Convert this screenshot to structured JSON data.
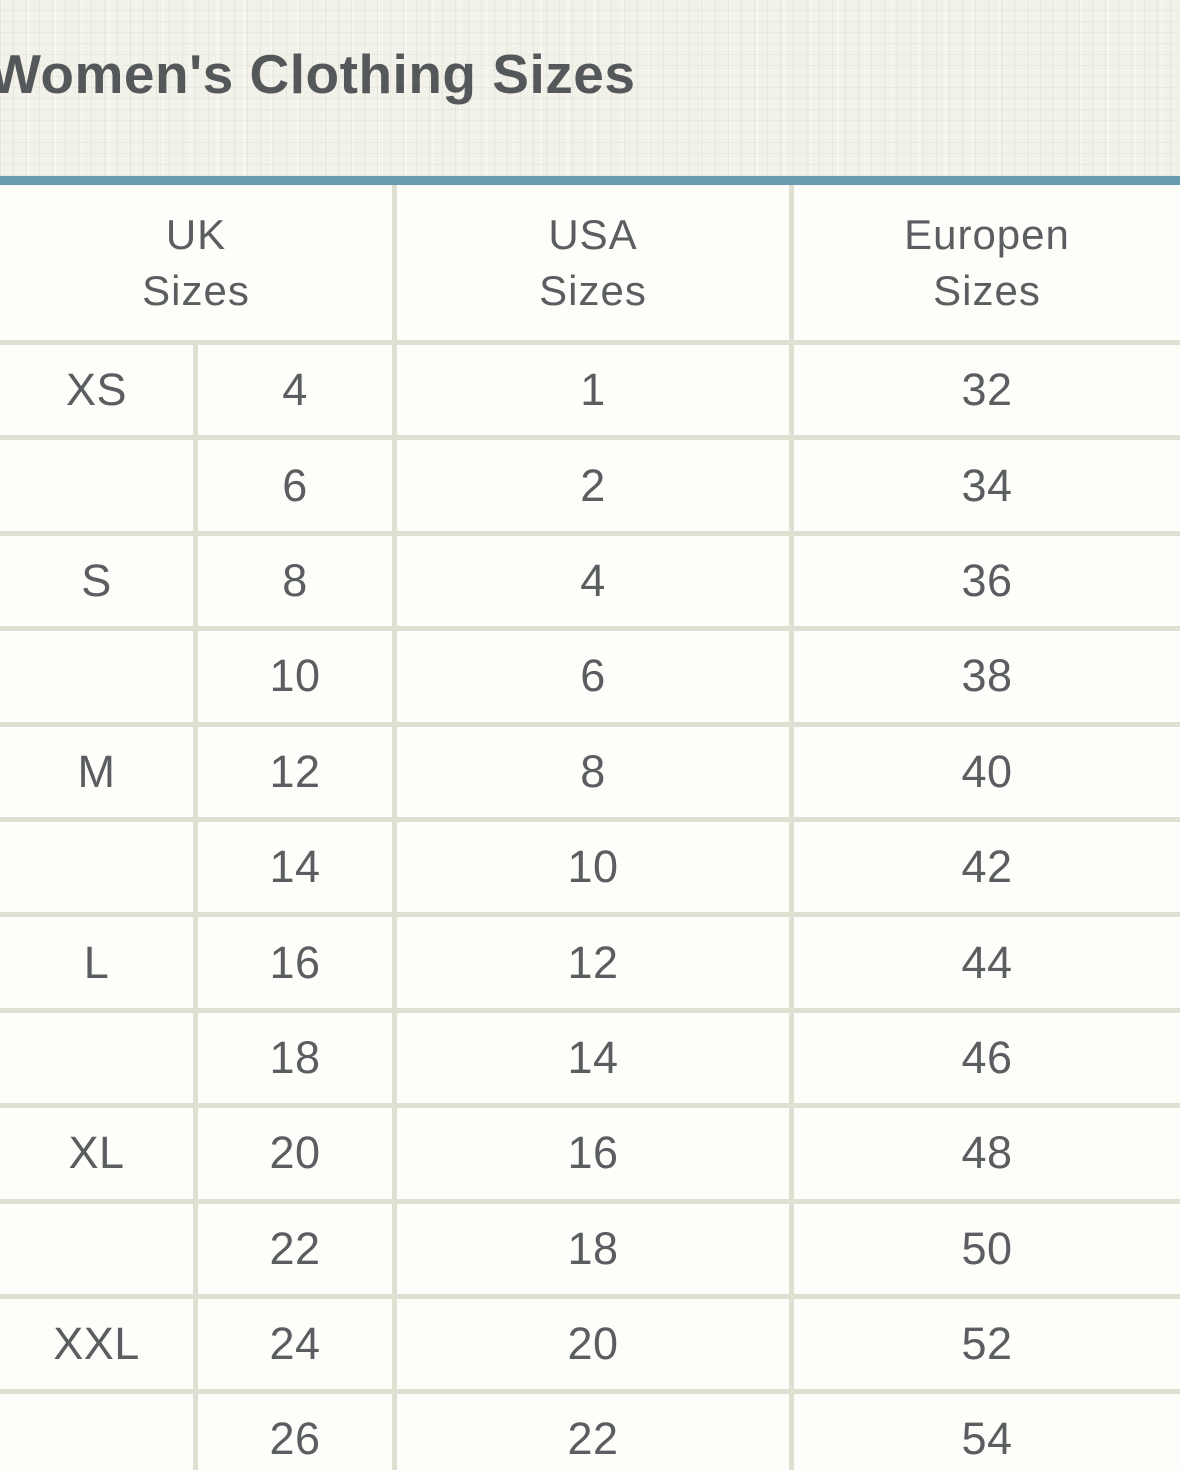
{
  "page_title": "Women's Clothing Sizes",
  "chart_data": {
    "type": "table",
    "title": "Women's Clothing Sizes",
    "columns": [
      "UK Sizes",
      "USA Sizes",
      "Europen Sizes"
    ],
    "layout_hints": {
      "uk_column_subcolumns": [
        "letter size",
        "uk numeric size"
      ],
      "grid": "on",
      "last_row_clipped_at_bottom": true,
      "title_clipped_at_left": true
    },
    "rows": [
      [
        "XS",
        "4",
        "1",
        "32"
      ],
      [
        "",
        "6",
        "2",
        "34"
      ],
      [
        "S",
        "8",
        "4",
        "36"
      ],
      [
        "",
        "10",
        "6",
        "38"
      ],
      [
        "M",
        "12",
        "8",
        "40"
      ],
      [
        "",
        "14",
        "10",
        "42"
      ],
      [
        "L",
        "16",
        "12",
        "44"
      ],
      [
        "",
        "18",
        "14",
        "46"
      ],
      [
        "XL",
        "20",
        "16",
        "48"
      ],
      [
        "",
        "22",
        "18",
        "50"
      ],
      [
        "XXL",
        "24",
        "20",
        "52"
      ],
      [
        "",
        "26",
        "22",
        "54"
      ]
    ]
  },
  "table": {
    "headers": [
      {
        "line1": "UK",
        "line2": "Sizes"
      },
      {
        "line1": "USA",
        "line2": "Sizes"
      },
      {
        "line1": "Europen",
        "line2": "Sizes"
      }
    ]
  },
  "colors": {
    "accent_bar": "#6b9bb1",
    "masthead_background": "#f3f2ea",
    "grid_line": "#e0e0d2",
    "cell_background": "#fdfdfa",
    "text": "#5a5e60",
    "title_text": "#54585a"
  }
}
